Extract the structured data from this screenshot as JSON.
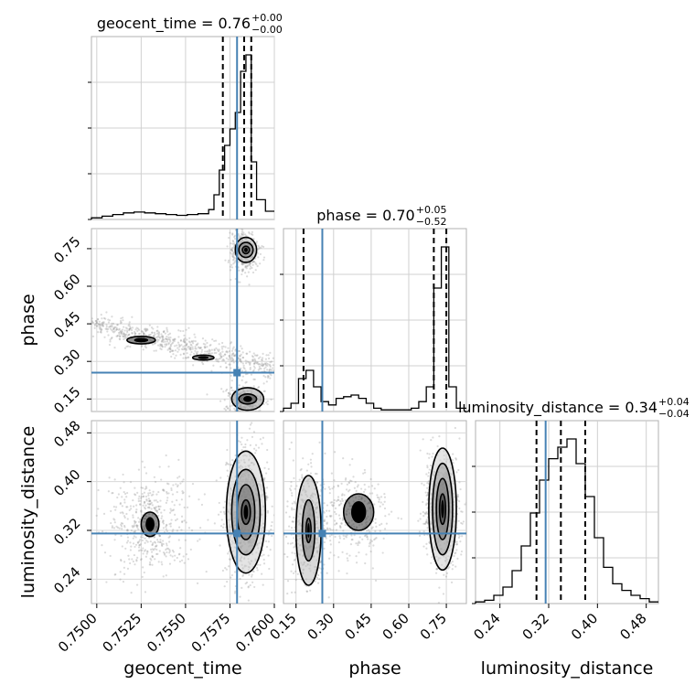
{
  "chart_data": {
    "type": "corner",
    "parameters": [
      "geocent_time",
      "phase",
      "luminosity_distance"
    ],
    "axis_labels": {
      "geocent_time": "geocent_time",
      "phase": "phase",
      "luminosity_distance": "luminosity_distance"
    },
    "titles": [
      {
        "param": "geocent_time",
        "text": "geocent_time = 0.76",
        "plus": "+0.00",
        "minus": "−0.00"
      },
      {
        "param": "phase",
        "text": "phase = 0.70",
        "plus": "+0.05",
        "minus": "−0.52"
      },
      {
        "param": "luminosity_distance",
        "text": "luminosity_distance = 0.34",
        "plus": "+0.04",
        "minus": "−0.04"
      }
    ],
    "ranges": {
      "geocent_time": [
        0.7497,
        0.76
      ],
      "phase": [
        0.1,
        0.83
      ],
      "luminosity_distance": [
        0.2,
        0.5
      ]
    },
    "ticks": {
      "geocent_time": [
        {
          "v": 0.75,
          "label": "0.7500"
        },
        {
          "v": 0.7525,
          "label": "0.7525"
        },
        {
          "v": 0.755,
          "label": "0.7550"
        },
        {
          "v": 0.7575,
          "label": "0.7575"
        },
        {
          "v": 0.76,
          "label": "0.7600"
        }
      ],
      "phase": [
        {
          "v": 0.15,
          "label": "0.15"
        },
        {
          "v": 0.3,
          "label": "0.30"
        },
        {
          "v": 0.45,
          "label": "0.45"
        },
        {
          "v": 0.6,
          "label": "0.60"
        },
        {
          "v": 0.75,
          "label": "0.75"
        }
      ],
      "luminosity_distance": [
        {
          "v": 0.24,
          "label": "0.24"
        },
        {
          "v": 0.32,
          "label": "0.32"
        },
        {
          "v": 0.4,
          "label": "0.40"
        },
        {
          "v": 0.48,
          "label": "0.48"
        }
      ]
    },
    "truths": {
      "geocent_time": 0.7579,
      "phase": 0.255,
      "luminosity_distance": 0.315
    },
    "quantiles": {
      "geocent_time": [
        0.7571,
        0.7583,
        0.7587
      ],
      "phase": [
        0.18,
        0.7,
        0.75
      ],
      "luminosity_distance": [
        0.3,
        0.34,
        0.38
      ]
    },
    "histograms": {
      "geocent_time": {
        "edges": [
          0.7497,
          0.7503,
          0.7509,
          0.7515,
          0.7521,
          0.7527,
          0.7533,
          0.7539,
          0.7545,
          0.7551,
          0.7557,
          0.7563,
          0.7566,
          0.7569,
          0.7572,
          0.7575,
          0.7578,
          0.7581,
          0.7584,
          0.7587,
          0.759,
          0.7595,
          0.76
        ],
        "counts": [
          0.01,
          0.02,
          0.03,
          0.04,
          0.045,
          0.04,
          0.035,
          0.03,
          0.025,
          0.03,
          0.035,
          0.06,
          0.15,
          0.3,
          0.45,
          0.55,
          0.65,
          0.9,
          1.0,
          0.35,
          0.12,
          0.05
        ]
      },
      "phase": {
        "edges": [
          0.1,
          0.13,
          0.16,
          0.19,
          0.22,
          0.25,
          0.28,
          0.31,
          0.34,
          0.37,
          0.4,
          0.43,
          0.46,
          0.49,
          0.52,
          0.55,
          0.58,
          0.61,
          0.64,
          0.67,
          0.7,
          0.73,
          0.76,
          0.79,
          0.83
        ],
        "counts": [
          0.02,
          0.05,
          0.2,
          0.25,
          0.15,
          0.06,
          0.04,
          0.08,
          0.09,
          0.1,
          0.08,
          0.05,
          0.02,
          0.01,
          0.01,
          0.01,
          0.01,
          0.02,
          0.06,
          0.15,
          0.75,
          1.0,
          0.15,
          0.02
        ]
      },
      "luminosity_distance": {
        "edges": [
          0.2,
          0.215,
          0.23,
          0.245,
          0.26,
          0.275,
          0.29,
          0.305,
          0.32,
          0.335,
          0.35,
          0.365,
          0.38,
          0.395,
          0.41,
          0.425,
          0.44,
          0.455,
          0.47,
          0.485,
          0.5
        ],
        "counts": [
          0.01,
          0.02,
          0.05,
          0.1,
          0.2,
          0.35,
          0.55,
          0.75,
          0.88,
          0.95,
          1.0,
          0.85,
          0.65,
          0.4,
          0.22,
          0.12,
          0.08,
          0.05,
          0.03,
          0.01
        ]
      }
    }
  }
}
